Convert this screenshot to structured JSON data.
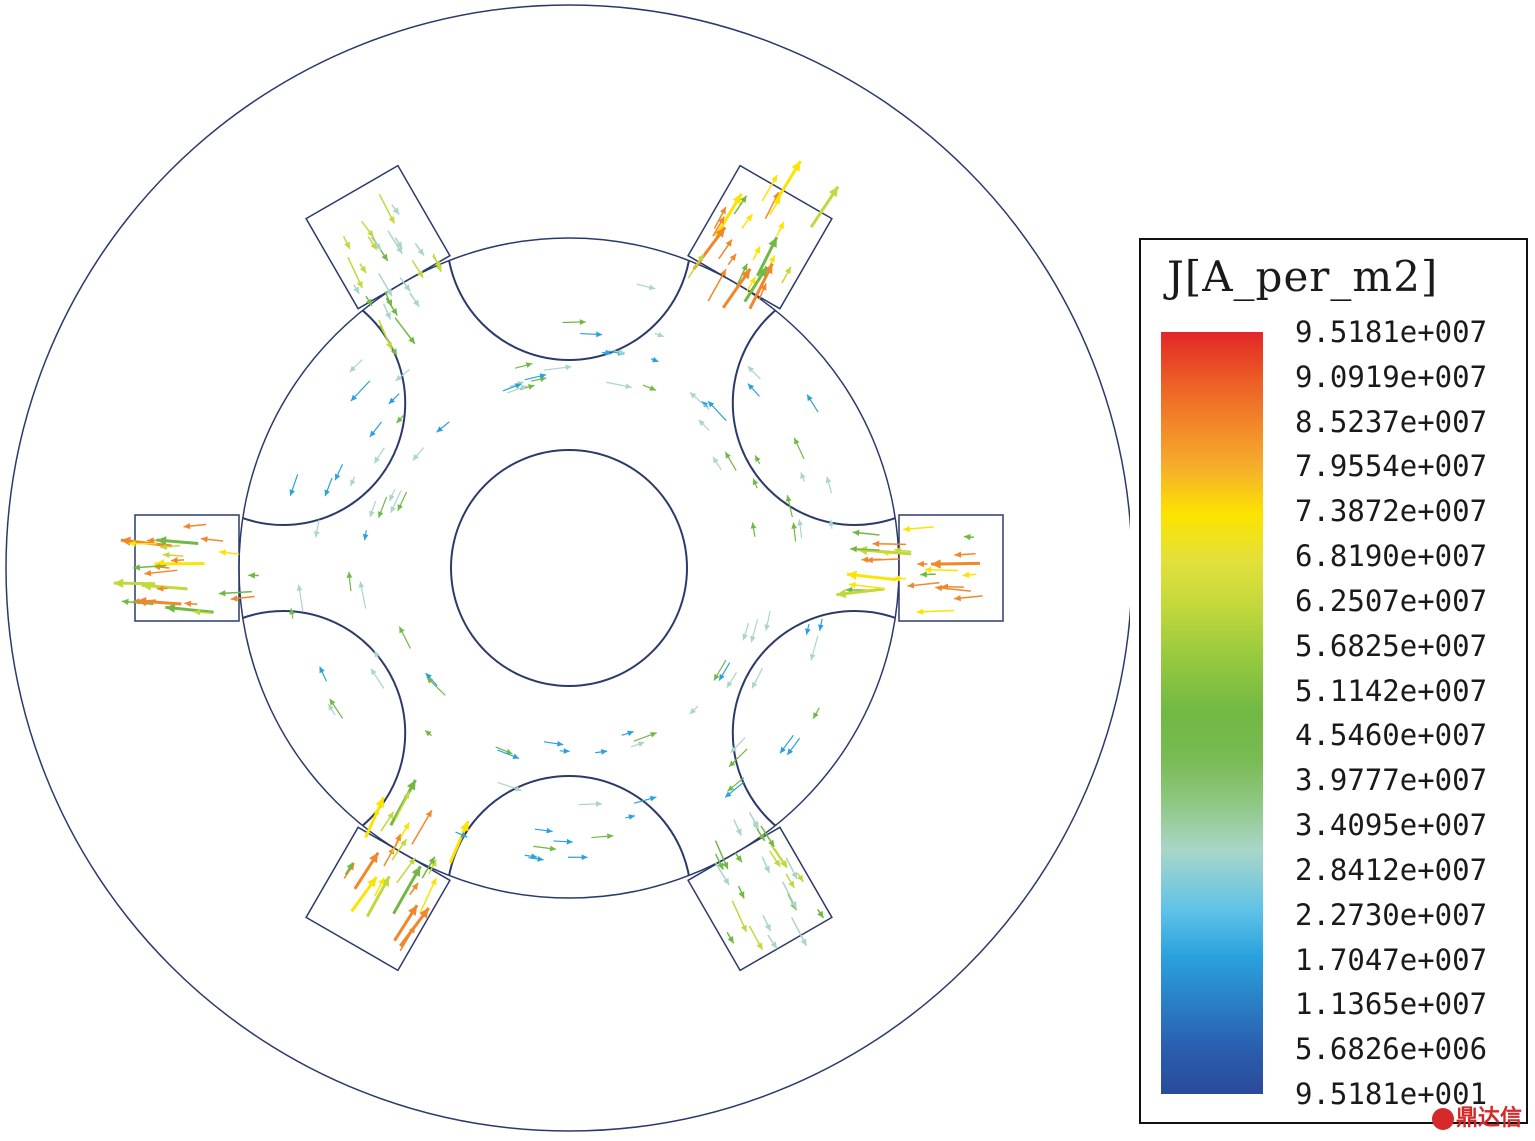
{
  "legend": {
    "title": "J[A_per_m2]",
    "labels": [
      "9.5181e+007",
      "9.0919e+007",
      "8.5237e+007",
      "7.9554e+007",
      "7.3872e+007",
      "6.8190e+007",
      "6.2507e+007",
      "5.6825e+007",
      "5.1142e+007",
      "4.5460e+007",
      "3.9777e+007",
      "3.4095e+007",
      "2.8412e+007",
      "2.2730e+007",
      "1.7047e+007",
      "1.1365e+007",
      "5.6826e+006",
      "9.5181e+001"
    ],
    "colors": [
      "#e3262a",
      "#f2862a",
      "#fce400",
      "#c3d83c",
      "#71b844",
      "#a9d6c8",
      "#2aa1dd",
      "#2b4a9c"
    ]
  },
  "geometry": {
    "outline_color": "#2b3a6b",
    "slot_count": 6
  },
  "watermark": {
    "text": "鼎达信"
  }
}
